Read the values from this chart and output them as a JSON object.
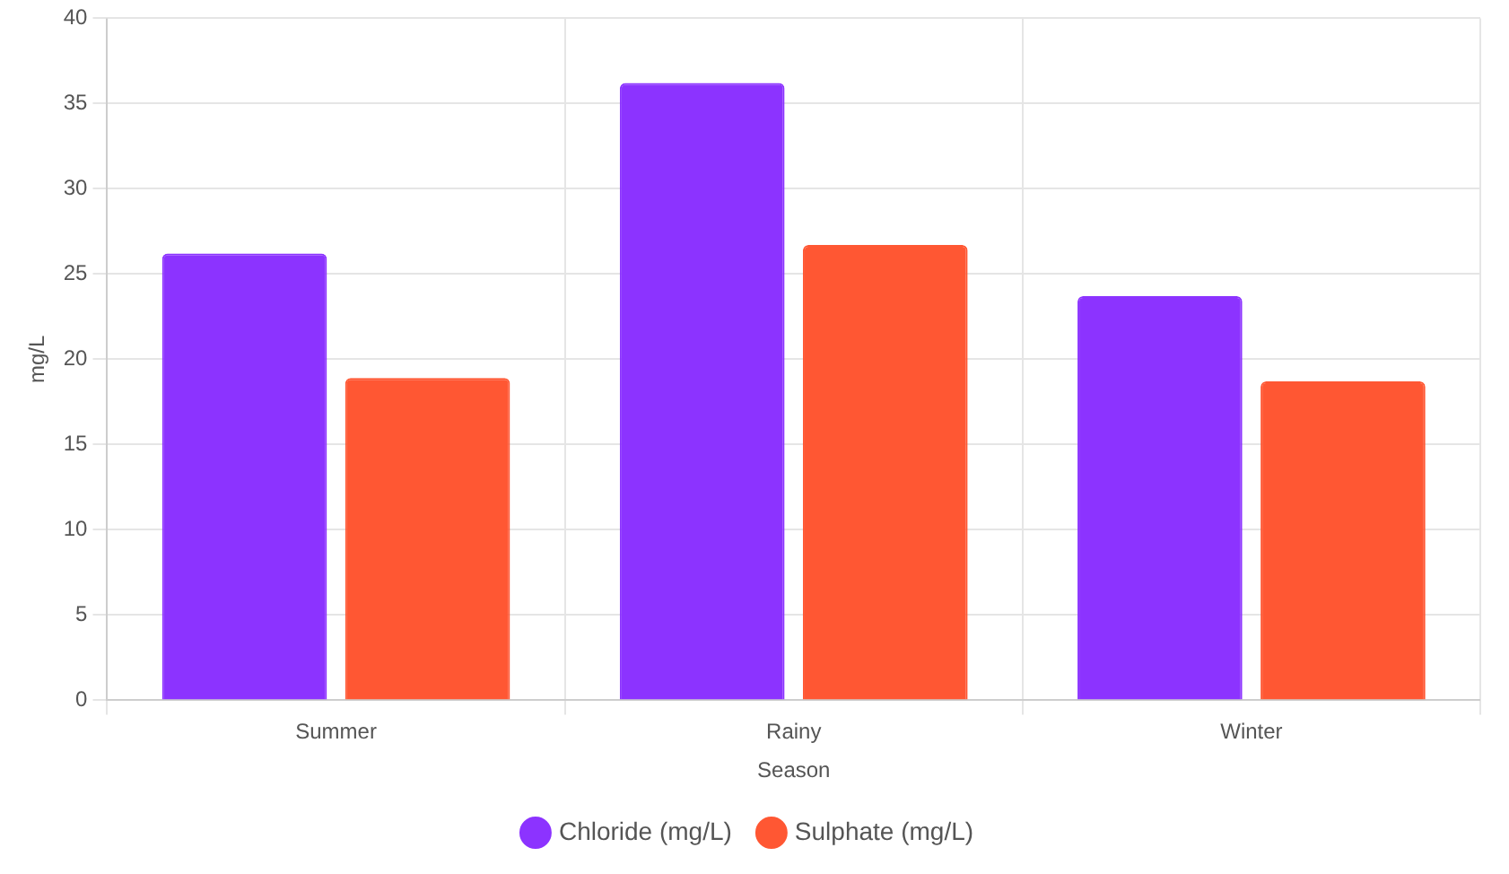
{
  "chart_data": {
    "type": "bar",
    "xlabel": "Season",
    "ylabel": "mg/L",
    "categories": [
      "Summer",
      "Rainy",
      "Winter"
    ],
    "series": [
      {
        "name": "Chloride (mg/L)",
        "color": "#8c33ff",
        "values": [
          26.2,
          36.2,
          23.7
        ]
      },
      {
        "name": "Sulphate (mg/L)",
        "color": "#ff5733",
        "values": [
          18.9,
          26.7,
          18.7
        ]
      }
    ],
    "ylim": [
      0,
      40
    ],
    "yticks": [
      0,
      5,
      10,
      15,
      20,
      25,
      30,
      35,
      40
    ],
    "grid": true,
    "legend": "bottom"
  }
}
